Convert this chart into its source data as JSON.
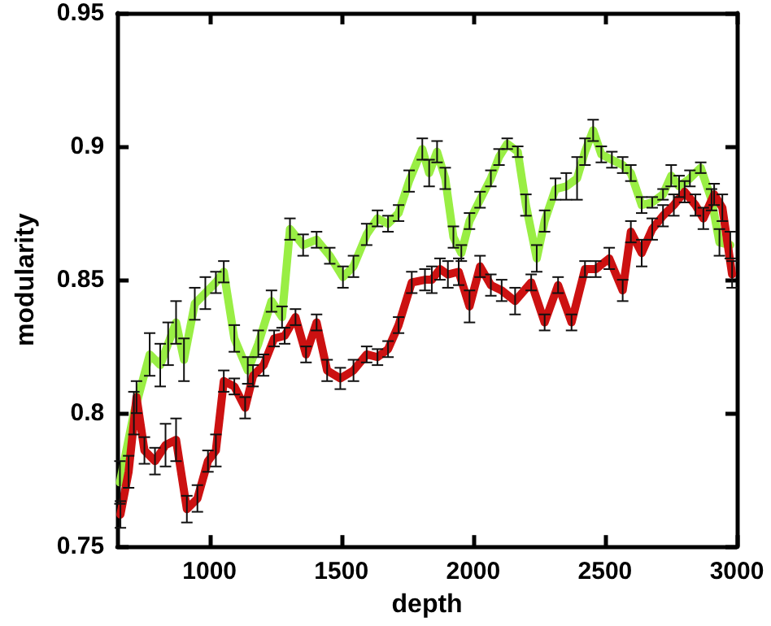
{
  "chart_data": {
    "type": "line",
    "xlabel": "depth",
    "ylabel": "modularity",
    "xlim": [
      650,
      3000
    ],
    "xticks": [
      1000,
      1500,
      2000,
      2500,
      3000
    ],
    "ylim": [
      0.75,
      0.95
    ],
    "yticks": [
      0.75,
      0.8,
      0.85,
      0.9,
      0.95
    ],
    "grid": false,
    "marker": "none",
    "line_style": "solid",
    "series": [
      {
        "color": "#99ee44",
        "x": [
          660,
          713,
          773,
          813,
          843,
          873,
          903,
          944,
          984,
          1024,
          1054,
          1094,
          1145,
          1185,
          1235,
          1275,
          1305,
          1355,
          1406,
          1456,
          1506,
          1546,
          1596,
          1637,
          1677,
          1717,
          1757,
          1807,
          1833,
          1863,
          1894,
          1925,
          1955,
          1986,
          2026,
          2067,
          2098,
          2129,
          2169,
          2200,
          2241,
          2271,
          2312,
          2353,
          2394,
          2424,
          2455,
          2486,
          2526,
          2567,
          2598,
          2639,
          2679,
          2720,
          2751,
          2781,
          2822,
          2863,
          2904,
          2934,
          2975
        ],
        "values": [
          0.774,
          0.8,
          0.822,
          0.818,
          0.826,
          0.834,
          0.82,
          0.841,
          0.845,
          0.849,
          0.853,
          0.828,
          0.816,
          0.826,
          0.842,
          0.836,
          0.869,
          0.863,
          0.865,
          0.859,
          0.851,
          0.855,
          0.867,
          0.873,
          0.871,
          0.875,
          0.887,
          0.899,
          0.89,
          0.898,
          0.888,
          0.866,
          0.86,
          0.872,
          0.88,
          0.888,
          0.896,
          0.901,
          0.898,
          0.878,
          0.858,
          0.872,
          0.884,
          0.885,
          0.888,
          0.898,
          0.906,
          0.897,
          0.895,
          0.893,
          0.89,
          0.878,
          0.879,
          0.882,
          0.889,
          0.885,
          0.888,
          0.892,
          0.88,
          0.864,
          0.863
        ],
        "errors": [
          0.008,
          0.008,
          0.008,
          0.008,
          0.008,
          0.008,
          0.008,
          0.006,
          0.006,
          0.004,
          0.004,
          0.005,
          0.005,
          0.005,
          0.004,
          0.004,
          0.004,
          0.004,
          0.003,
          0.003,
          0.004,
          0.004,
          0.004,
          0.003,
          0.003,
          0.003,
          0.004,
          0.004,
          0.005,
          0.004,
          0.004,
          0.004,
          0.003,
          0.003,
          0.003,
          0.003,
          0.003,
          0.002,
          0.002,
          0.004,
          0.005,
          0.004,
          0.004,
          0.005,
          0.008,
          0.005,
          0.004,
          0.003,
          0.003,
          0.003,
          0.003,
          0.003,
          0.002,
          0.002,
          0.004,
          0.004,
          0.003,
          0.002,
          0.004,
          0.005,
          0.005
        ]
      },
      {
        "color": "#cc1111",
        "x": [
          662,
          693,
          723,
          753,
          793,
          833,
          873,
          914,
          954,
          994,
          1024,
          1054,
          1094,
          1135,
          1165,
          1205,
          1245,
          1285,
          1326,
          1366,
          1406,
          1446,
          1496,
          1546,
          1596,
          1637,
          1677,
          1717,
          1767,
          1817,
          1843,
          1874,
          1904,
          1945,
          1986,
          2026,
          2067,
          2108,
          2159,
          2220,
          2271,
          2322,
          2373,
          2424,
          2465,
          2516,
          2567,
          2598,
          2639,
          2679,
          2720,
          2761,
          2802,
          2843,
          2873,
          2914,
          2945,
          2982
        ],
        "values": [
          0.762,
          0.778,
          0.806,
          0.786,
          0.782,
          0.788,
          0.79,
          0.764,
          0.768,
          0.782,
          0.786,
          0.812,
          0.81,
          0.802,
          0.814,
          0.818,
          0.828,
          0.829,
          0.836,
          0.822,
          0.834,
          0.816,
          0.813,
          0.816,
          0.822,
          0.821,
          0.824,
          0.833,
          0.849,
          0.85,
          0.85,
          0.854,
          0.852,
          0.853,
          0.84,
          0.855,
          0.848,
          0.846,
          0.842,
          0.849,
          0.834,
          0.848,
          0.834,
          0.854,
          0.854,
          0.858,
          0.846,
          0.868,
          0.86,
          0.869,
          0.874,
          0.878,
          0.883,
          0.878,
          0.873,
          0.882,
          0.877,
          0.852
        ],
        "errors": [
          0.005,
          0.006,
          0.006,
          0.005,
          0.005,
          0.008,
          0.008,
          0.005,
          0.005,
          0.004,
          0.006,
          0.004,
          0.003,
          0.004,
          0.004,
          0.004,
          0.003,
          0.003,
          0.003,
          0.003,
          0.003,
          0.004,
          0.004,
          0.004,
          0.003,
          0.003,
          0.003,
          0.003,
          0.004,
          0.004,
          0.005,
          0.004,
          0.005,
          0.005,
          0.006,
          0.004,
          0.004,
          0.004,
          0.005,
          0.003,
          0.003,
          0.003,
          0.003,
          0.003,
          0.003,
          0.004,
          0.004,
          0.004,
          0.005,
          0.004,
          0.004,
          0.004,
          0.004,
          0.004,
          0.004,
          0.004,
          0.005,
          0.005
        ]
      }
    ]
  }
}
